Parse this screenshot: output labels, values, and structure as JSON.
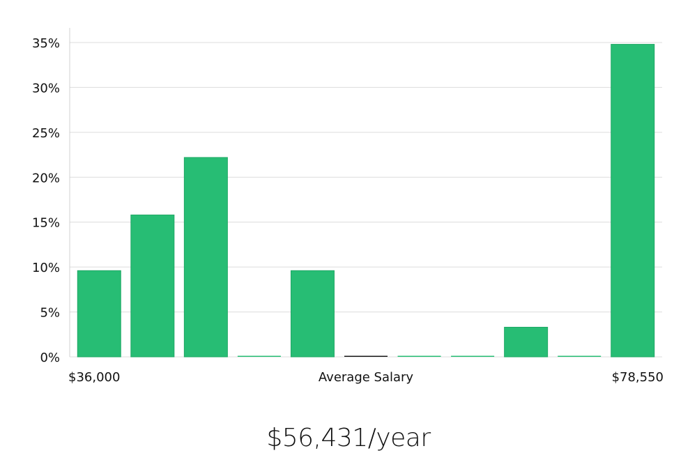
{
  "summary": {
    "salary_text": "$56,431/year"
  },
  "colors": {
    "bar": "#27bd74",
    "bar_stroke": "#1fa865",
    "zero_bar_dark": "#1a1a1a",
    "gridline": "#dcdcdc"
  },
  "chart_data": {
    "type": "bar",
    "title": "",
    "xlabel": "Average Salary",
    "ylabel": "",
    "x_start_label": "$36,000",
    "x_end_label": "$78,550",
    "ylim": [
      0,
      35
    ],
    "yticks": [
      0,
      5,
      10,
      15,
      20,
      25,
      30,
      35
    ],
    "ytick_labels": [
      "0%",
      "5%",
      "10%",
      "15%",
      "20%",
      "25%",
      "30%",
      "35%"
    ],
    "values": [
      9.6,
      15.8,
      22.2,
      0,
      9.6,
      0,
      0,
      0,
      3.3,
      0,
      34.8
    ],
    "highlight_index": 5
  }
}
